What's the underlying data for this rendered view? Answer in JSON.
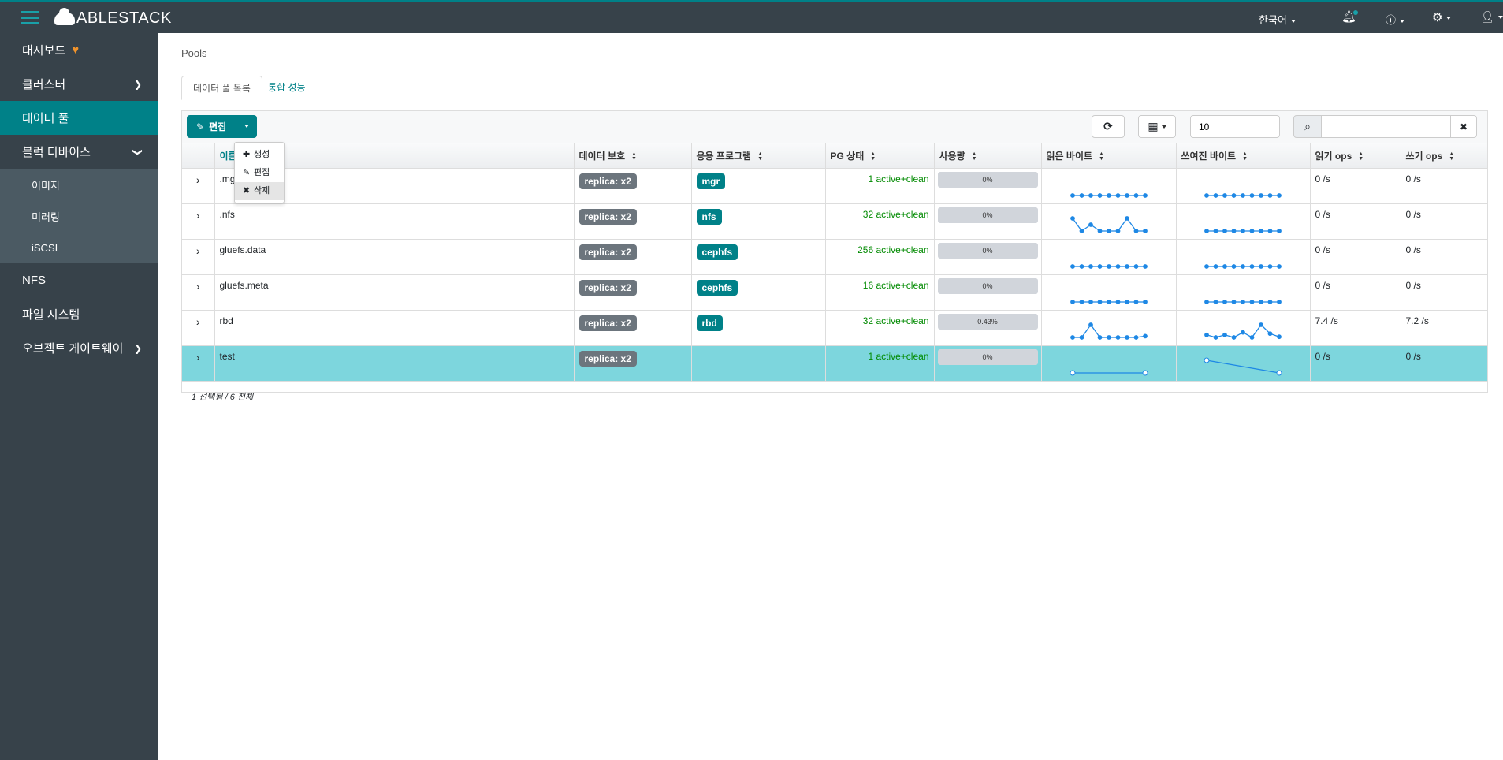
{
  "header": {
    "brand": "ABLESTACK",
    "language": "한국어",
    "icons": [
      "menu-icon",
      "bell-icon",
      "help-icon",
      "gear-icon",
      "user-icon"
    ]
  },
  "sidebar": {
    "items": [
      {
        "label": "대시보드",
        "icon": "heartbeat-icon"
      },
      {
        "label": "클러스터",
        "chevron": "right"
      },
      {
        "label": "데이터 풀",
        "active": true
      },
      {
        "label": "블럭 디바이스",
        "chevron": "down"
      },
      {
        "label": "이미지"
      },
      {
        "label": "미러링"
      },
      {
        "label": "iSCSI"
      },
      {
        "label": "NFS"
      },
      {
        "label": "파일 시스템"
      },
      {
        "label": "오브젝트 게이트웨이",
        "chevron": "right"
      }
    ]
  },
  "breadcrumb": "Pools",
  "tabs": [
    {
      "label": "데이터 풀 목록"
    },
    {
      "label": "통합 성능"
    }
  ],
  "toolbar": {
    "edit_label": "편집",
    "page_size": "10",
    "search_placeholder": ""
  },
  "menu": [
    {
      "icon": "plus-icon",
      "label": "생성"
    },
    {
      "icon": "pencil-icon",
      "label": "편집"
    },
    {
      "icon": "times-icon",
      "label": "삭제",
      "highlighted": true
    }
  ],
  "columns": [
    "이름",
    "데이터 보호",
    "응용 프로그램",
    "PG 상태",
    "사용량",
    "읽은 바이트",
    "쓰여진 바이트",
    "읽기 ops",
    "쓰기 ops"
  ],
  "rows": [
    {
      "name": ".mgr",
      "protection": "replica: x2",
      "app": "mgr",
      "pg": "1 active+clean",
      "usage": "0%",
      "read": [
        0,
        0,
        0,
        0,
        0,
        0,
        0,
        0,
        0
      ],
      "write": [
        0,
        0,
        0,
        0,
        0,
        0,
        0,
        0,
        0
      ],
      "rops": "0 /s",
      "wops": "0 /s"
    },
    {
      "name": ".nfs",
      "protection": "replica: x2",
      "app": "nfs",
      "pg": "32 active+clean",
      "usage": "0%",
      "read": [
        1,
        0,
        0.5,
        0,
        0,
        0,
        1,
        0,
        0
      ],
      "write": [
        0,
        0,
        0,
        0,
        0,
        0,
        0,
        0,
        0
      ],
      "rops": "0 /s",
      "wops": "0 /s"
    },
    {
      "name": "gluefs.data",
      "protection": "replica: x2",
      "app": "cephfs",
      "pg": "256 active+clean",
      "usage": "0%",
      "read": [
        0,
        0,
        0,
        0,
        0,
        0,
        0,
        0,
        0
      ],
      "write": [
        0,
        0,
        0,
        0,
        0,
        0,
        0,
        0,
        0
      ],
      "rops": "0 /s",
      "wops": "0 /s"
    },
    {
      "name": "gluefs.meta",
      "protection": "replica: x2",
      "app": "cephfs",
      "pg": "16 active+clean",
      "usage": "0%",
      "read": [
        0,
        0,
        0,
        0,
        0,
        0,
        0,
        0,
        0
      ],
      "write": [
        0,
        0,
        0,
        0,
        0,
        0,
        0,
        0,
        0
      ],
      "rops": "0 /s",
      "wops": "0 /s"
    },
    {
      "name": "rbd",
      "protection": "replica: x2",
      "app": "rbd",
      "pg": "32 active+clean",
      "usage": "0.43%",
      "read": [
        0,
        0,
        1,
        0,
        0,
        0,
        0,
        0,
        0.1
      ],
      "write": [
        0.2,
        0,
        0.2,
        0,
        0.4,
        0,
        1,
        0.3,
        0.05
      ],
      "rops": "7.4 /s",
      "wops": "7.2 /s"
    },
    {
      "name": "test",
      "protection": "replica: x2",
      "app": "",
      "pg": "1 active+clean",
      "usage": "0%",
      "read": [
        0,
        0
      ],
      "write": [
        1,
        0
      ],
      "rops": "0 /s",
      "wops": "0 /s",
      "selected": true
    }
  ],
  "footer": "1 선택됨 / 6 전체",
  "colors": {
    "accent": "#008188",
    "header": "#37424a",
    "selected_row": "#7dd6dd",
    "spark": "#1e88e5",
    "pg_ok": "#008a00"
  }
}
